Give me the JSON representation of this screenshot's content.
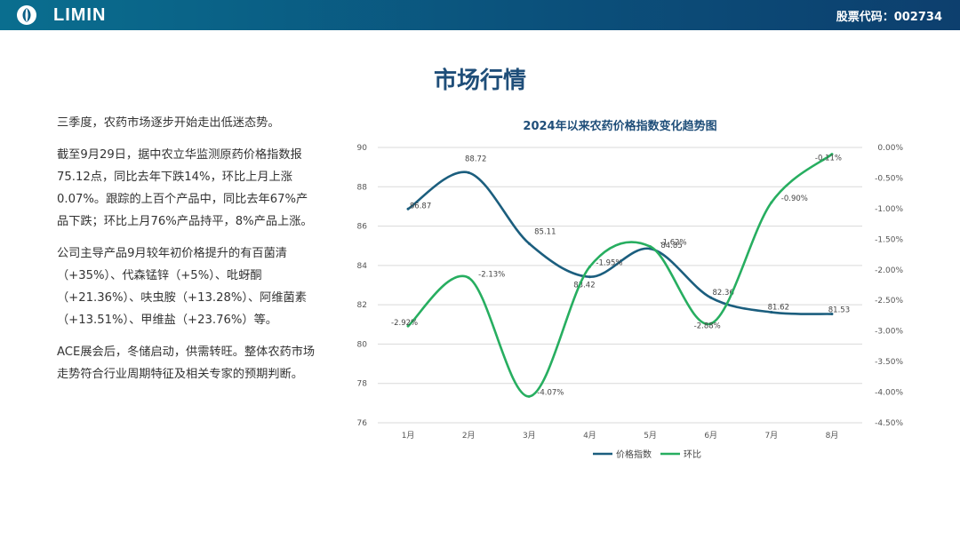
{
  "header": {
    "brand": "LIMIN",
    "stock_code": "股票代码：002734",
    "bar_color": "#0b5f86"
  },
  "page": {
    "title": "市场行情"
  },
  "body": {
    "paragraphs": [
      "三季度，农药市场逐步开始走出低迷态势。",
      "截至9月29日，据中农立华监测原药价格指数报75.12点，同比去年下跌14%，环比上月上涨0.07%。跟踪的上百个产品中，同比去年67%产品下跌；环比上月76%产品持平，8%产品上涨。",
      "公司主导产品9月较年初价格提升的有百菌清（+35%）、代森锰锌（+5%）、吡蚜酮（+21.36%）、呋虫胺（+13.28%）、阿维菌素（+13.51%）、甲维盐（+23.76%）等。",
      "ACE展会后，冬储启动，供需转旺。整体农药市场走势符合行业周期特征及相关专家的预期判断。"
    ]
  },
  "chart_data": {
    "type": "line",
    "title": "2024年以来农药价格指数变化趋势图",
    "categories": [
      "1月",
      "2月",
      "3月",
      "4月",
      "5月",
      "6月",
      "7月",
      "8月"
    ],
    "series": [
      {
        "name": "价格指数",
        "axis": "left",
        "color": "#1b5e7e",
        "values": [
          86.87,
          88.72,
          85.11,
          83.42,
          84.85,
          82.36,
          81.62,
          81.53
        ],
        "labels": [
          "86.87",
          "88.72",
          "85.11",
          "83.42",
          "84.85",
          "82.36",
          "81.62",
          "81.53"
        ]
      },
      {
        "name": "环比",
        "axis": "right",
        "color": "#27ae60",
        "values": [
          -2.92,
          -2.13,
          -4.07,
          -1.95,
          -1.62,
          -2.88,
          -0.9,
          -0.11
        ],
        "labels": [
          "-2.92%",
          "-2.13%",
          "-4.07%",
          "-1.95%",
          "-1.62%",
          "-2.88%",
          "-0.90%",
          "-0.11%"
        ]
      }
    ],
    "y_left": {
      "min": 76,
      "max": 90,
      "step": 2,
      "ticks": [
        "76",
        "78",
        "80",
        "82",
        "84",
        "86",
        "88",
        "90"
      ]
    },
    "y_right": {
      "min": -4.5,
      "max": 0,
      "step": 0.5,
      "ticks": [
        "-4.50%",
        "-4.00%",
        "-3.50%",
        "-3.00%",
        "-2.50%",
        "-2.00%",
        "-1.50%",
        "-1.00%",
        "-0.50%",
        "0.00%"
      ]
    },
    "grid": true,
    "legend_position": "bottom"
  }
}
